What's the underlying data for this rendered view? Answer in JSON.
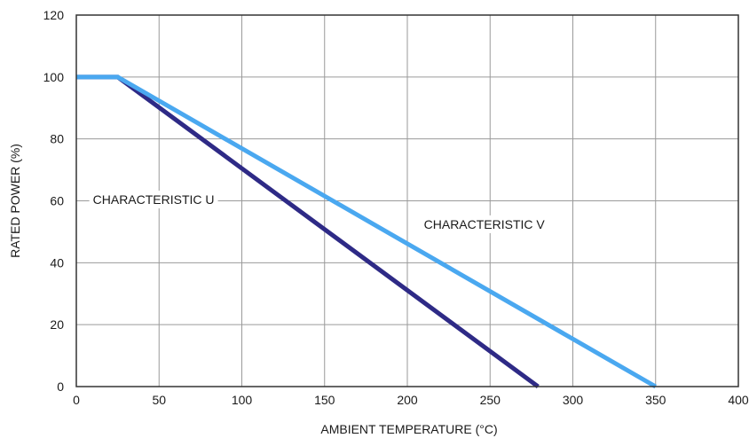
{
  "chart_data": {
    "type": "line",
    "title": "",
    "xlabel": "AMBIENT TEMPERATURE (°C)",
    "ylabel": "RATED POWER (%)",
    "xlim": [
      0,
      400
    ],
    "ylim": [
      0,
      120
    ],
    "x_ticks": [
      0,
      50,
      100,
      150,
      200,
      250,
      300,
      350,
      400
    ],
    "y_ticks": [
      0,
      20,
      40,
      60,
      80,
      100,
      120
    ],
    "x_tick_labels": [
      "0",
      "50",
      "100",
      "150",
      "200",
      "250",
      "300",
      "350",
      "400"
    ],
    "y_tick_labels": [
      "0",
      "20",
      "40",
      "60",
      "80",
      "100",
      "120"
    ],
    "grid": true,
    "legend": "none",
    "series": [
      {
        "name": "CHARACTERISTIC U",
        "color": "#2e2a86",
        "points": [
          [
            0,
            100
          ],
          [
            25,
            100
          ],
          [
            279,
            0
          ]
        ]
      },
      {
        "name": "CHARACTERISTIC V",
        "color": "#4aa8f0",
        "points": [
          [
            0,
            100
          ],
          [
            25,
            100
          ],
          [
            350,
            0
          ]
        ]
      }
    ],
    "annotations": [
      {
        "text": "CHARACTERISTIC U",
        "x": 10,
        "y": 59,
        "anchor": "start"
      },
      {
        "text": "CHARACTERISTIC V",
        "x": 210,
        "y": 51,
        "anchor": "start"
      }
    ]
  }
}
